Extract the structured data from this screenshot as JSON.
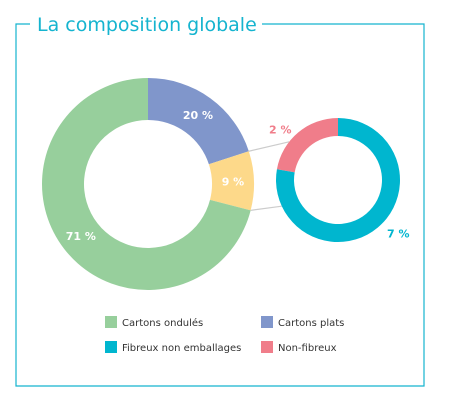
{
  "title": "La composition globale",
  "colors": {
    "frame": "#15b4cf",
    "cartons_ondules": "#97cf9c",
    "cartons_plats": "#8096cb",
    "fibreux_non_emballages": "#00b6cf",
    "non_fibreux": "#f07d8a",
    "autres": "#fdd98a",
    "connector": "#cccccc"
  },
  "chart_data": [
    {
      "type": "pie",
      "title": "La composition globale",
      "slices": [
        {
          "label": "Cartons plats",
          "value": 20,
          "display": "20 %",
          "color": "#8096cb"
        },
        {
          "label": "",
          "value": 9,
          "display": "9 %",
          "color": "#fdd98a"
        },
        {
          "label": "Cartons ondulés",
          "value": 71,
          "display": "71 %",
          "color": "#97cf9c"
        }
      ]
    },
    {
      "type": "pie",
      "title": "",
      "slices": [
        {
          "label": "Non-fibreux",
          "value": 2,
          "display": "2 %",
          "color": "#f07d8a"
        },
        {
          "label": "Fibreux non emballages",
          "value": 7,
          "display": "7 %",
          "color": "#00b6cf"
        }
      ]
    }
  ],
  "legend": [
    {
      "label": "Cartons ondulés",
      "color": "#97cf9c"
    },
    {
      "label": "Cartons plats",
      "color": "#8096cb"
    },
    {
      "label": "Fibreux non emballages",
      "color": "#00b6cf"
    },
    {
      "label": "Non-fibreux",
      "color": "#f07d8a"
    }
  ]
}
